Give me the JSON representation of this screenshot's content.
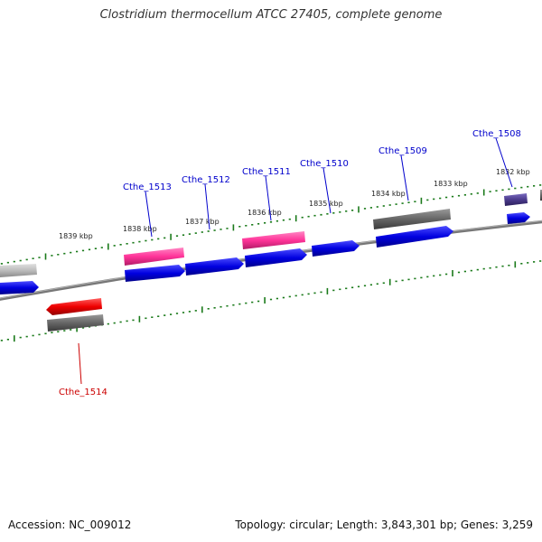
{
  "title": "Clostridium thermocellum ATCC 27405, complete genome",
  "footer": {
    "accession_label": "Accession:",
    "accession": "NC_009012",
    "topology_label": "Topology:",
    "topology": "circular",
    "length_label": "Length:",
    "length": "3,843,301 bp",
    "genes_label": "Genes:",
    "genes": "3,259"
  },
  "colors": {
    "cds_blue": "#0000e0",
    "highlight_pink": "#ff3399",
    "highlight_red": "#ee0000",
    "gray_feature": "#666666",
    "light_gray_feature": "#bbbbbb",
    "purple_feature": "#4b3a8c",
    "backbone": "#777777",
    "tick_green": "#1a7a1a",
    "label_blue": "#0000cc",
    "label_red": "#cc0000"
  },
  "scale_labels": [
    "1839 kbp",
    "1838 kbp",
    "1837 kbp",
    "1836 kbp",
    "1835 kbp",
    "1834 kbp",
    "1833 kbp",
    "1832 kbp"
  ],
  "gene_labels": [
    {
      "text": "Cthe_1513",
      "color": "blue"
    },
    {
      "text": "Cthe_1512",
      "color": "blue"
    },
    {
      "text": "Cthe_1511",
      "color": "blue"
    },
    {
      "text": "Cthe_1510",
      "color": "blue"
    },
    {
      "text": "Cthe_1509",
      "color": "blue"
    },
    {
      "text": "Cthe_1508",
      "color": "blue"
    },
    {
      "text": "Cthe_1514",
      "color": "red"
    }
  ]
}
